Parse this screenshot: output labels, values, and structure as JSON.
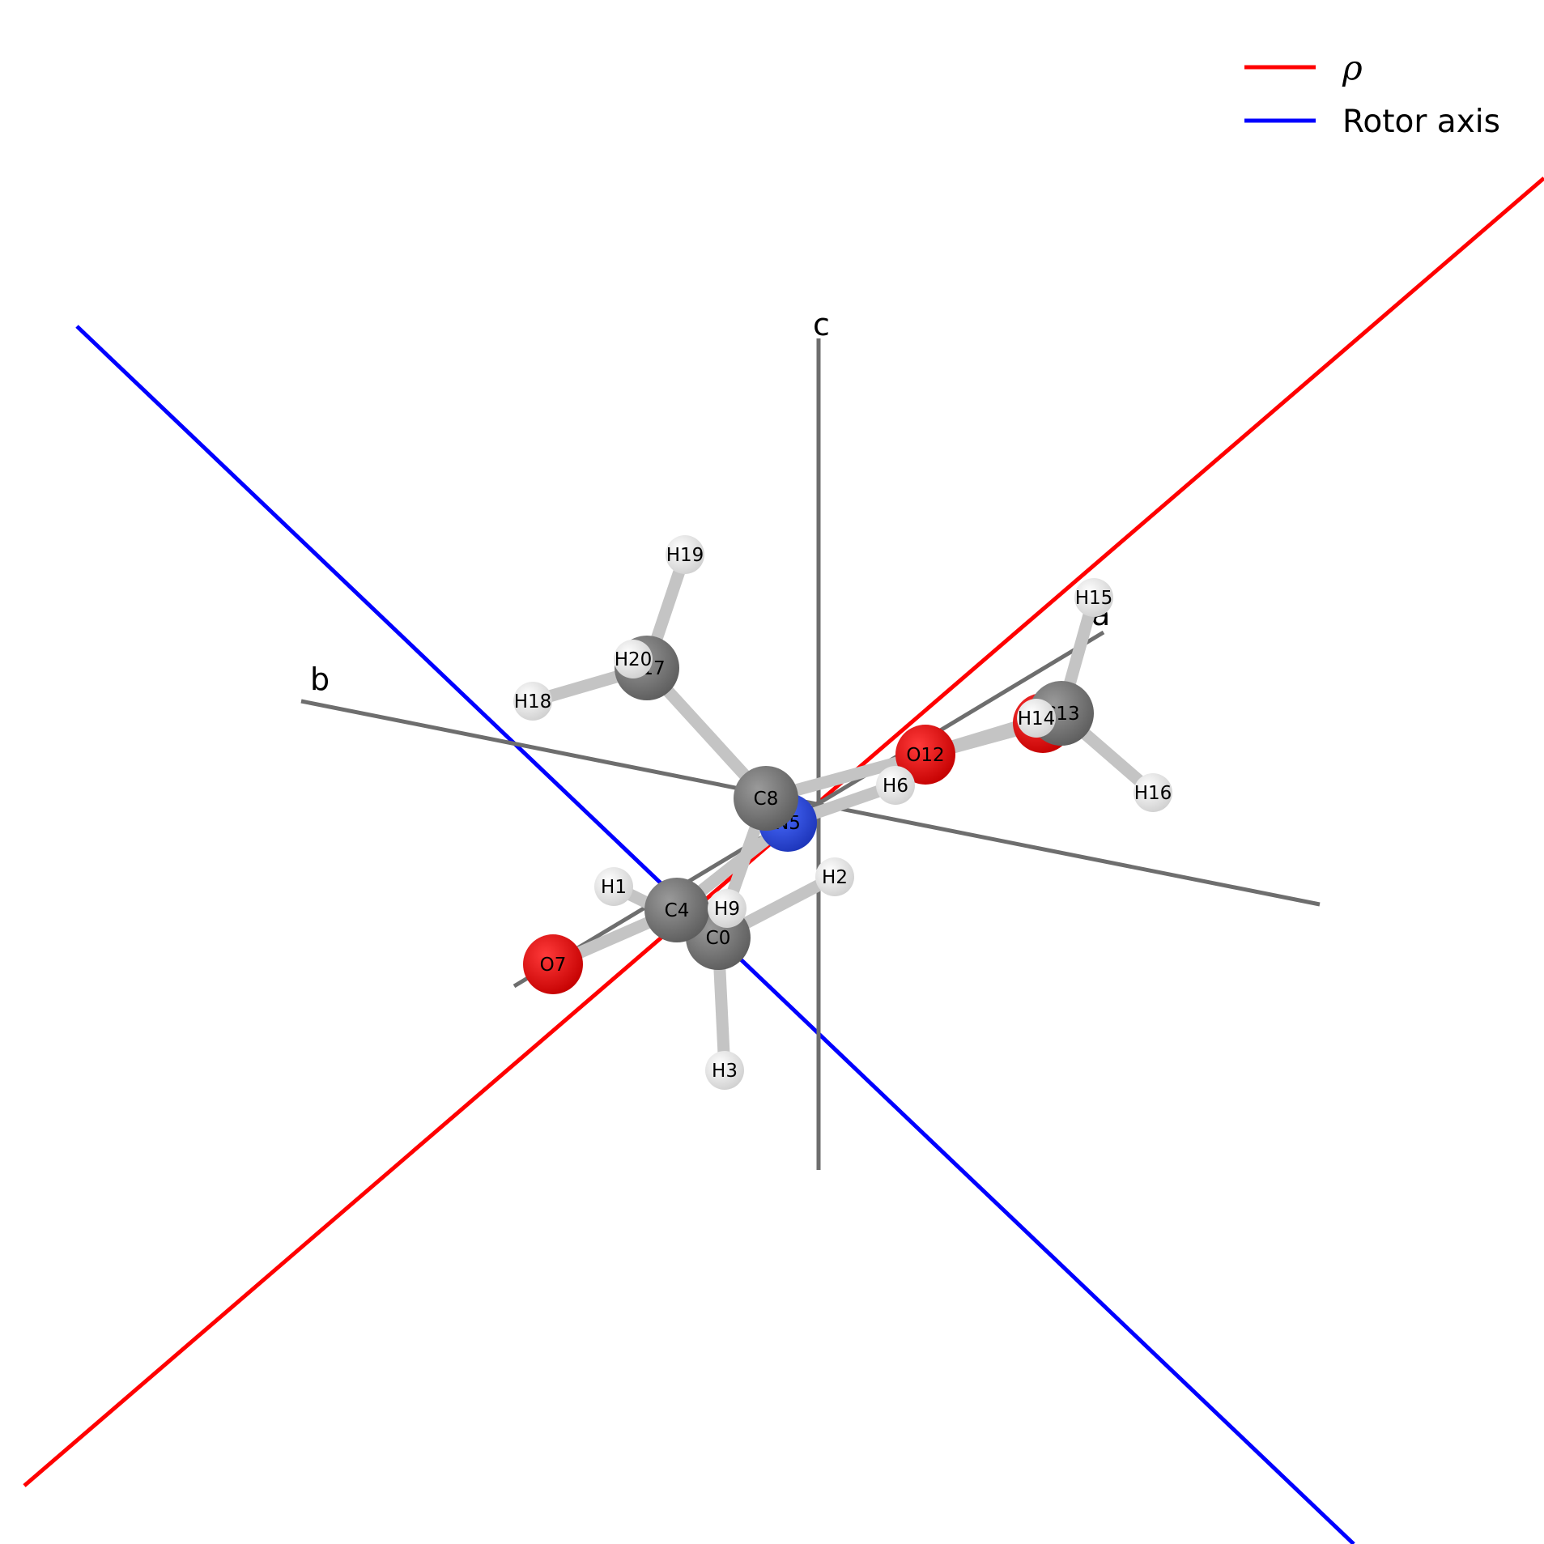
{
  "legend": {
    "items": [
      {
        "key": "rho",
        "label": "ρ",
        "color": "#ff0000"
      },
      {
        "key": "rotor",
        "label": "Rotor axis",
        "color": "#0000ff"
      }
    ]
  },
  "axes": [
    {
      "key": "a",
      "label": "a"
    },
    {
      "key": "b",
      "label": "b"
    },
    {
      "key": "c",
      "label": "c"
    }
  ],
  "colors": {
    "rho": "#ff0000",
    "rotor_axis": "#0000ff",
    "frame_axes": "#6e6e6e",
    "carbon": "#7a7a7a",
    "oxygen": "#e50000",
    "nitrogen": "#2c4ee0",
    "hydrogen": "#e6e6e6",
    "bond": "#c4c4c4"
  },
  "atoms": [
    {
      "label": "C0",
      "element": "C"
    },
    {
      "label": "H1",
      "element": "H"
    },
    {
      "label": "H2",
      "element": "H"
    },
    {
      "label": "H3",
      "element": "H"
    },
    {
      "label": "C4",
      "element": "C"
    },
    {
      "label": "N5",
      "element": "N"
    },
    {
      "label": "H6",
      "element": "H"
    },
    {
      "label": "O7",
      "element": "O"
    },
    {
      "label": "C8",
      "element": "C"
    },
    {
      "label": "H9",
      "element": "H"
    },
    {
      "label": "O11",
      "element": "O"
    },
    {
      "label": "O12",
      "element": "O"
    },
    {
      "label": "C13",
      "element": "C"
    },
    {
      "label": "H14",
      "element": "H"
    },
    {
      "label": "H15",
      "element": "H"
    },
    {
      "label": "H16",
      "element": "H"
    },
    {
      "label": "C17",
      "element": "C"
    },
    {
      "label": "H18",
      "element": "H"
    },
    {
      "label": "H19",
      "element": "H"
    },
    {
      "label": "H20",
      "element": "H"
    }
  ],
  "bonds": [
    [
      "C0",
      "H1"
    ],
    [
      "C0",
      "H2"
    ],
    [
      "C0",
      "H3"
    ],
    [
      "C0",
      "C4"
    ],
    [
      "C4",
      "O7"
    ],
    [
      "C4",
      "N5"
    ],
    [
      "N5",
      "H6"
    ],
    [
      "N5",
      "C8"
    ],
    [
      "C8",
      "H9"
    ],
    [
      "C8",
      "C17"
    ],
    [
      "C8",
      "O11"
    ],
    [
      "O11",
      "O12"
    ],
    [
      "O12",
      "C13"
    ],
    [
      "C13",
      "H14"
    ],
    [
      "C13",
      "H15"
    ],
    [
      "C13",
      "H16"
    ],
    [
      "C17",
      "H18"
    ],
    [
      "C17",
      "H19"
    ],
    [
      "C17",
      "H20"
    ]
  ]
}
